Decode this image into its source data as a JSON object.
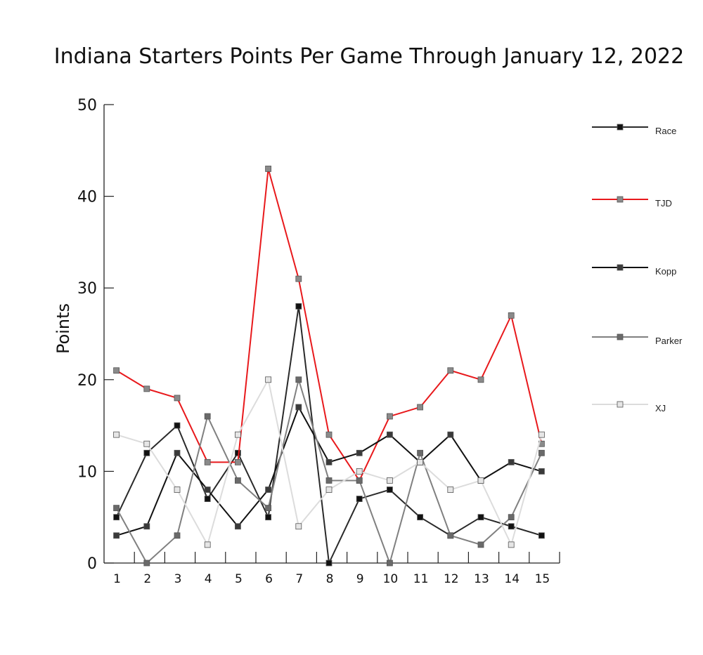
{
  "chart_data": {
    "type": "line",
    "title": "Indiana Starters Points Per Game Through January 12, 2022",
    "xlabel": "",
    "ylabel": "Points",
    "ylim": [
      0,
      50
    ],
    "yticks": [
      0,
      10,
      20,
      30,
      40,
      50
    ],
    "categories": [
      "1",
      "2",
      "3",
      "4",
      "5",
      "6",
      "7",
      "8",
      "9",
      "10",
      "11",
      "12",
      "13",
      "14",
      "15"
    ],
    "grid": false,
    "legend_position": "right",
    "series": [
      {
        "name": "Race",
        "color": "#2a2a2a",
        "marker": "#111111",
        "values": [
          5,
          12,
          15,
          7,
          12,
          5,
          28,
          0,
          7,
          8,
          5,
          3,
          5,
          4,
          3
        ]
      },
      {
        "name": "TJD",
        "color": "#e8191c",
        "marker": "#8a8a8a",
        "values": [
          21,
          19,
          18,
          11,
          11,
          43,
          31,
          14,
          9,
          16,
          17,
          21,
          20,
          27,
          13
        ]
      },
      {
        "name": "Kopp",
        "color": "#111111",
        "marker": "#3a3a3a",
        "values": [
          3,
          4,
          12,
          8,
          4,
          8,
          17,
          11,
          12,
          14,
          11,
          14,
          9,
          11,
          10
        ]
      },
      {
        "name": "Parker",
        "color": "#808080",
        "marker": "#6a6a6a",
        "values": [
          6,
          0,
          3,
          16,
          9,
          6,
          20,
          9,
          9,
          0,
          12,
          3,
          2,
          5,
          12
        ]
      },
      {
        "name": "XJ",
        "color": "#dcdcdc",
        "marker": "#e6e6e6",
        "values": [
          14,
          13,
          8,
          2,
          14,
          20,
          4,
          8,
          10,
          9,
          11,
          8,
          9,
          2,
          14
        ]
      }
    ]
  }
}
